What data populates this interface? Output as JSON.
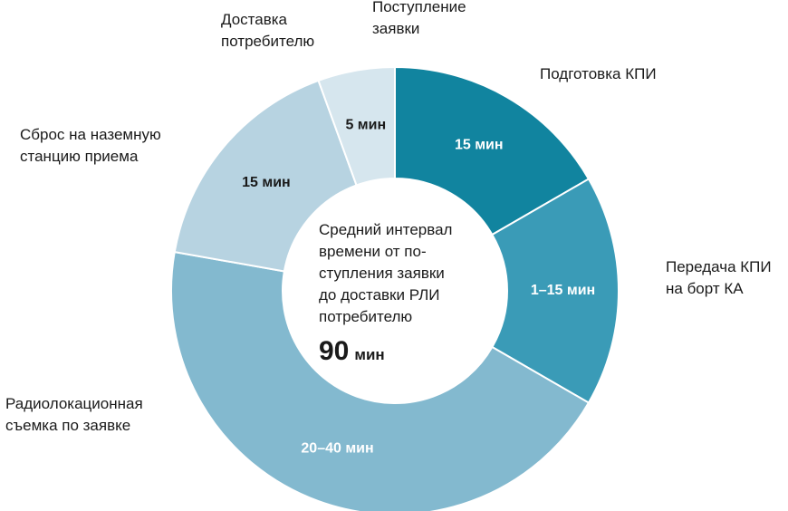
{
  "chart_data": {
    "type": "pie",
    "subtype": "donut",
    "slices": [
      {
        "label": "Подготовка КПИ",
        "value_label": "15 мин",
        "share": 15,
        "color": "#11849f",
        "value_color": "#ffffff"
      },
      {
        "label": "Передача КПИ\nна борт КА",
        "value_label": "1–15 мин",
        "share": 15,
        "color": "#3a9bb7",
        "value_color": "#ffffff"
      },
      {
        "label": "Радиолокационная\nсъемка по заявке",
        "value_label": "20–40 мин",
        "share": 40,
        "color": "#83b9cf",
        "value_color": "#ffffff"
      },
      {
        "label": "Сброс на наземную\nстанцию приема",
        "value_label": "15 мин",
        "share": 15,
        "color": "#b7d3e1",
        "value_color": "#1a1a1a"
      },
      {
        "label": "Доставка\nпотребителю",
        "value_label": "5 мин",
        "share": 5,
        "color": "#d6e6ee",
        "value_color": "#1a1a1a"
      }
    ],
    "top_label": "Поступление\nзаявки",
    "center_text": "Средний интервал\nвремени от по-\nступления заявки\nдо доставки РЛИ\nпотребителю",
    "total_value": "90",
    "total_unit": "мин"
  }
}
